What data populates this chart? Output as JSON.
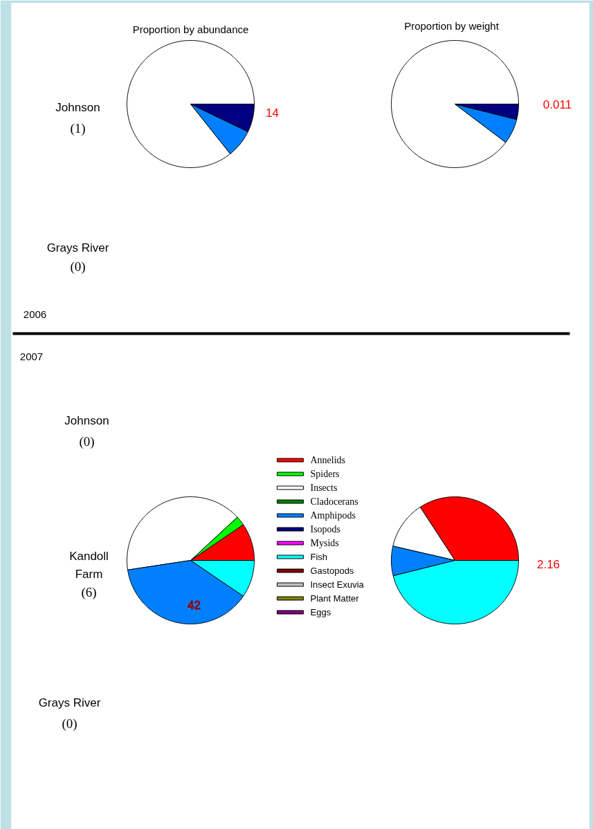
{
  "chart_data": [
    {
      "type": "pie",
      "title": "Proportion by abundance",
      "categories": [
        "Annelids",
        "Spiders",
        "Insects",
        "Cladocerans",
        "Amphipods",
        "Isopods",
        "Mysids",
        "Fish",
        "Gastopods",
        "Insect Exuvia",
        "Plant Matter",
        "Eggs"
      ],
      "values": [
        0,
        0,
        85.7,
        0,
        7.15,
        7.15,
        0,
        0,
        0,
        0,
        0,
        0
      ],
      "colors": [
        "#ff0000",
        "#00ff00",
        "#ffffff",
        "#008000",
        "#0080ff",
        "#000080",
        "#ff00ff",
        "#00ffff",
        "#800000",
        "#c0c0c0",
        "#808000",
        "#800080"
      ],
      "legend": "bottom right",
      "annotations": [
        "14",
        "Johnson\n(1)",
        "Grays River\n(0)",
        "2006"
      ]
    },
    {
      "type": "pie",
      "title": "Proportion by weight",
      "categories": [
        null,
        null,
        null,
        null,
        null,
        null,
        null,
        null,
        null,
        null,
        null,
        null
      ],
      "values": [
        0,
        0,
        89.7,
        0,
        6.4,
        3.9,
        0,
        0,
        0,
        0,
        0,
        0
      ],
      "colors": [
        "#ff0000",
        "#00ff00",
        "#ffffff",
        "#008000",
        "#0080ff",
        "#000080",
        "#ff00ff",
        "#00ffff",
        "#800000",
        "#c0c0c0",
        "#808000",
        "#800080"
      ],
      "annotations": [
        "0.011"
      ]
    },
    {
      "type": "pie",
      "categories": [
        null,
        null,
        null,
        null,
        null,
        null,
        null,
        null,
        null,
        null,
        null,
        null
      ],
      "values": [
        9.5,
        2.4,
        40.5,
        0,
        38.1,
        0,
        0,
        9.5,
        0,
        0,
        0,
        0
      ],
      "colors": [
        "#ff0000",
        "#00ff00",
        "#ffffff",
        "#008000",
        "#0080ff",
        "#000080",
        "#ff00ff",
        "#00ffff",
        "#800000",
        "#c0c0c0",
        "#808000",
        "#800080"
      ],
      "annotations": [
        "42",
        "2007",
        "Johnson\n(0)",
        "Kandoll\nFarm\n(6)",
        "Grays River\n(0)"
      ]
    },
    {
      "type": "pie",
      "categories": [
        null,
        null,
        null,
        null,
        null,
        null,
        null,
        null,
        null,
        null,
        null,
        null
      ],
      "values": [
        34.2,
        0,
        12.2,
        0,
        7.5,
        0,
        0,
        46.1,
        0,
        0,
        0,
        0
      ],
      "colors": [
        "#ff0000",
        "#00ff00",
        "#ffffff",
        "#008000",
        "#0080ff",
        "#000080",
        "#ff00ff",
        "#00ffff",
        "#800000",
        "#c0c0c0",
        "#808000",
        "#800080"
      ],
      "annotations": [
        "2.16"
      ]
    }
  ]
}
